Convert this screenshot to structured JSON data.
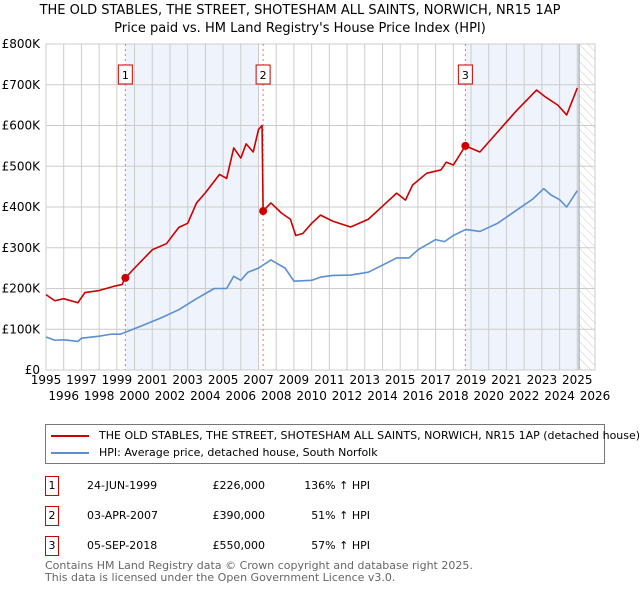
{
  "chart_data": {
    "type": "line",
    "title": "THE OLD STABLES, THE STREET, SHOTESHAM ALL SAINTS, NORWICH, NR15 1AP",
    "subtitle": "Price paid vs. HM Land Registry's House Price Index (HPI)",
    "xlim": [
      1995,
      2026
    ],
    "ylim": [
      0,
      800000
    ],
    "x_ticks": [
      "1995",
      "1996",
      "1997",
      "1998",
      "1999",
      "2000",
      "2001",
      "2002",
      "2003",
      "2004",
      "2005",
      "2006",
      "2007",
      "2008",
      "2009",
      "2010",
      "2011",
      "2012",
      "2013",
      "2014",
      "2015",
      "2016",
      "2017",
      "2018",
      "2019",
      "2020",
      "2021",
      "2022",
      "2023",
      "2024",
      "2025",
      "2026"
    ],
    "y_ticks": [
      {
        "v": 0,
        "label": "£0"
      },
      {
        "v": 100000,
        "label": "£100K"
      },
      {
        "v": 200000,
        "label": "£200K"
      },
      {
        "v": 300000,
        "label": "£300K"
      },
      {
        "v": 400000,
        "label": "£400K"
      },
      {
        "v": 500000,
        "label": "£500K"
      },
      {
        "v": 600000,
        "label": "£600K"
      },
      {
        "v": 700000,
        "label": "£700K"
      },
      {
        "v": 800000,
        "label": "£800K"
      }
    ],
    "grid": true,
    "series": [
      {
        "name": "THE OLD STABLES, THE STREET, SHOTESHAM ALL SAINTS, NORWICH, NR15 1AP (detached house)",
        "color": "#cc0000",
        "x": [
          1995,
          1995.5,
          1996,
          1996.8,
          1997.2,
          1998,
          1998.8,
          1999.3,
          1999.48,
          2000,
          2001,
          2001.8,
          2002.5,
          2003,
          2003.5,
          2004,
          2004.8,
          2005.2,
          2005.6,
          2006,
          2006.3,
          2006.7,
          2007,
          2007.2,
          2007.26,
          2007.7,
          2008.3,
          2008.8,
          2009.1,
          2009.5,
          2010,
          2010.5,
          2011.2,
          2012.2,
          2013.2,
          2013.9,
          2014.8,
          2015.3,
          2015.7,
          2016.5,
          2017.3,
          2017.6,
          2018,
          2018.68,
          2019.5,
          2020.6,
          2021.6,
          2022.7,
          2023.2,
          2023.9,
          2024.4,
          2025
        ],
        "y": [
          185000,
          170000,
          175000,
          165000,
          190000,
          195000,
          205000,
          210000,
          226000,
          250000,
          295000,
          310000,
          350000,
          360000,
          410000,
          435000,
          480000,
          470000,
          545000,
          520000,
          555000,
          535000,
          590000,
          600000,
          390000,
          410000,
          385000,
          370000,
          330000,
          335000,
          360000,
          380000,
          365000,
          351000,
          370000,
          398000,
          434000,
          417000,
          454000,
          483000,
          491000,
          510000,
          503000,
          550000,
          535000,
          589000,
          638000,
          687000,
          670000,
          650000,
          626000,
          692000
        ]
      },
      {
        "name": "HPI: Average price, detached house, South Norfolk",
        "color": "#5b8fd1",
        "x": [
          1995,
          1995.5,
          1996,
          1996.8,
          1997,
          1998,
          1998.7,
          1999.2,
          1999.5,
          2000.5,
          2001.5,
          2002.5,
          2003.5,
          2004.5,
          2005.2,
          2005.6,
          2006,
          2006.4,
          2007,
          2007.7,
          2008.5,
          2009,
          2010,
          2010.5,
          2011.2,
          2012.2,
          2013.2,
          2013.9,
          2014.8,
          2015.5,
          2016,
          2017,
          2017.5,
          2018,
          2018.7,
          2019.5,
          2020.5,
          2021.5,
          2022.5,
          2023.1,
          2023.5,
          2024,
          2024.4,
          2025
        ],
        "y": [
          81000,
          73000,
          74000,
          70000,
          78000,
          83000,
          88000,
          88000,
          93000,
          110000,
          128000,
          148000,
          175000,
          200000,
          200000,
          230000,
          220000,
          240000,
          250000,
          270000,
          250000,
          218000,
          220000,
          228000,
          232000,
          233000,
          240000,
          255000,
          275000,
          275000,
          295000,
          320000,
          315000,
          330000,
          345000,
          340000,
          360000,
          390000,
          420000,
          445000,
          430000,
          418000,
          400000,
          440000
        ]
      }
    ],
    "sales": [
      {
        "id": "1",
        "x": 1999.48,
        "y": 226000
      },
      {
        "id": "2",
        "x": 2007.26,
        "y": 390000
      },
      {
        "id": "3",
        "x": 2018.68,
        "y": 550000
      }
    ],
    "shaded": [
      [
        1999.48,
        2007.0
      ],
      [
        2018.68,
        2025.1
      ]
    ],
    "future_hatch_from": 2025.1
  },
  "legend": {
    "property": "THE OLD STABLES, THE STREET, SHOTESHAM ALL SAINTS, NORWICH, NR15 1AP (detached house)",
    "hpi": "HPI: Average price, detached house, South Norfolk"
  },
  "table": [
    {
      "num": "1",
      "date": "24-JUN-1999",
      "price": "£226,000",
      "hpi": "136% ↑ HPI"
    },
    {
      "num": "2",
      "date": "03-APR-2007",
      "price": "£390,000",
      "hpi": "51% ↑ HPI"
    },
    {
      "num": "3",
      "date": "05-SEP-2018",
      "price": "£550,000",
      "hpi": "57% ↑ HPI"
    }
  ],
  "footer": {
    "line1": "Contains HM Land Registry data © Crown copyright and database right 2025.",
    "line2": "This data is licensed under the Open Government Licence v3.0."
  }
}
